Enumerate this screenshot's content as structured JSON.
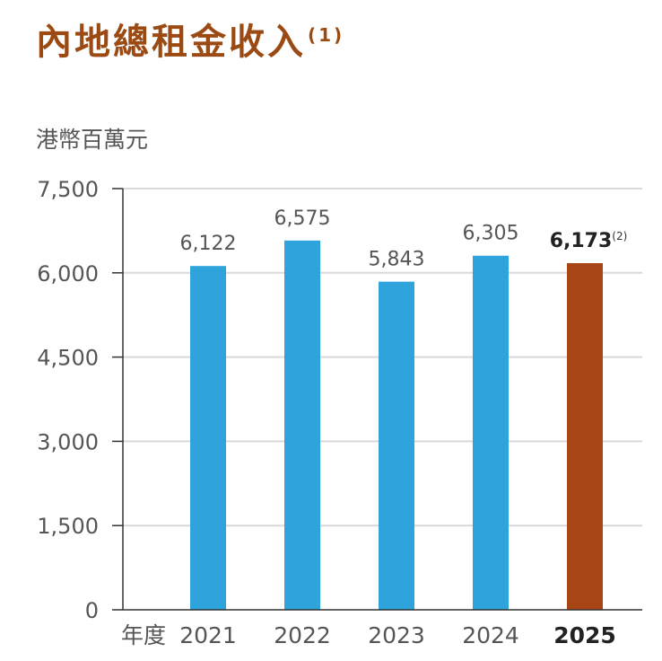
{
  "header": {
    "title": "內地總租金收入",
    "title_note": "(1)",
    "unit": "港幣百萬元"
  },
  "colors": {
    "title": "#9a4a12",
    "bar": "#2fa4dc",
    "highlight_bar": "#a84514",
    "grid": "#d9d9d9",
    "axis": "#333333"
  },
  "chart_data": {
    "type": "bar",
    "title": "內地總租金收入",
    "ylabel": "港幣百萬元",
    "xlabel": "年度",
    "categories": [
      "2021",
      "2022",
      "2023",
      "2024",
      "2025"
    ],
    "values": [
      6122,
      6575,
      5843,
      6305,
      6173
    ],
    "value_labels": [
      "6,122",
      "6,575",
      "5,843",
      "6,305",
      "6,173"
    ],
    "highlight_index": 4,
    "highlight_note": "(2)",
    "ylim": [
      0,
      7500
    ],
    "yticks": [
      0,
      1500,
      3000,
      4500,
      6000,
      7500
    ],
    "ytick_labels": [
      "0",
      "1,500",
      "3,000",
      "4,500",
      "6,000",
      "7,500"
    ],
    "grid": true
  }
}
